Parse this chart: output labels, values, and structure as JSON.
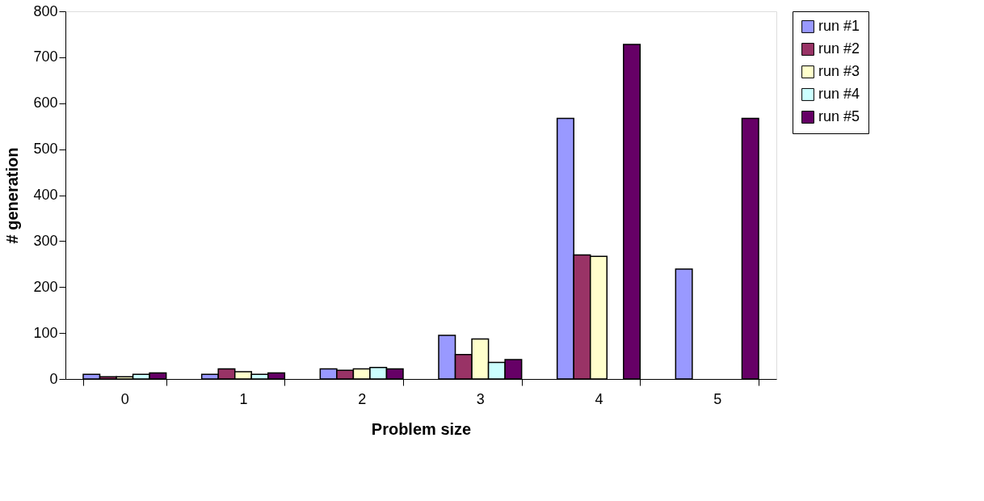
{
  "chart_data": {
    "type": "bar",
    "xlabel": "Problem size",
    "ylabel": "# generation",
    "categories": [
      "0",
      "1",
      "2",
      "3",
      "4",
      "5"
    ],
    "series": [
      {
        "name": "run #1",
        "color": "#9999ff",
        "values": [
          10,
          10,
          22,
          95,
          567,
          239
        ]
      },
      {
        "name": "run #2",
        "color": "#993366",
        "values": [
          5,
          22,
          19,
          53,
          270,
          null
        ]
      },
      {
        "name": "run #3",
        "color": "#ffffcc",
        "values": [
          5,
          16,
          22,
          87,
          267,
          null
        ]
      },
      {
        "name": "run #4",
        "color": "#ccffff",
        "values": [
          10,
          10,
          25,
          36,
          null,
          null
        ]
      },
      {
        "name": "run #5",
        "color": "#660066",
        "values": [
          13,
          13,
          22,
          42,
          728,
          567
        ]
      }
    ],
    "ylim": [
      0,
      800
    ],
    "yticks": [
      0,
      100,
      200,
      300,
      400,
      500,
      600,
      700,
      800
    ],
    "grid": false,
    "legend": "right"
  }
}
